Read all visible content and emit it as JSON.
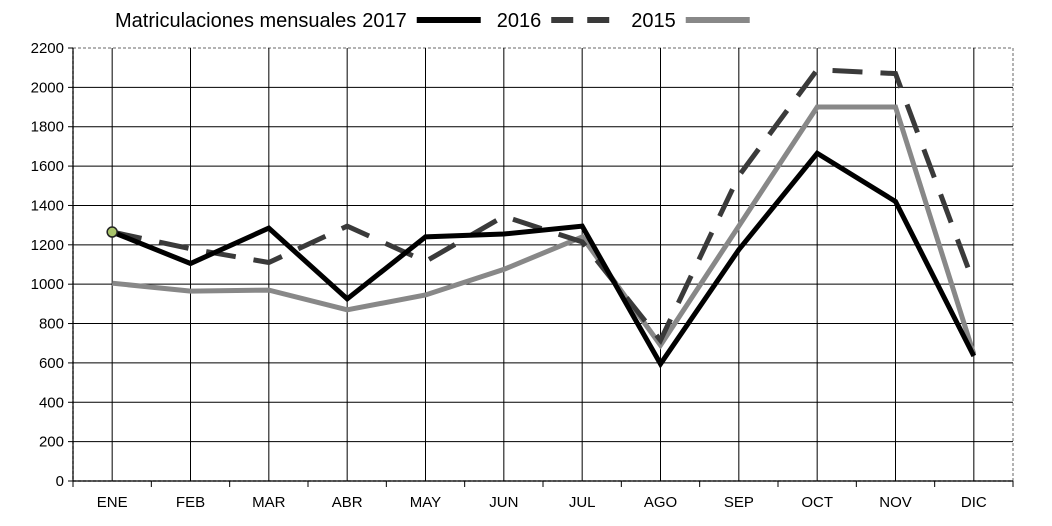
{
  "chart_data": {
    "type": "line",
    "title": "",
    "xlabel": "",
    "ylabel": "",
    "categories": [
      "ENE",
      "FEB",
      "MAR",
      "ABR",
      "MAY",
      "JUN",
      "JUL",
      "AGO",
      "SEP",
      "OCT",
      "NOV",
      "DIC"
    ],
    "ylim": [
      0,
      2200
    ],
    "yticks": [
      "0",
      "200",
      "400",
      "600",
      "800",
      "1000",
      "1200",
      "1400",
      "1600",
      "1800",
      "2000",
      "2200"
    ],
    "grid": true,
    "legend_position": "top",
    "legend_prefix": "Matriculaciones mensuales",
    "series": [
      {
        "name": "2017",
        "color": "#000000",
        "style": "solid",
        "values": [
          1265,
          1105,
          1285,
          925,
          1240,
          1255,
          1295,
          595,
          1175,
          1665,
          1420,
          635
        ]
      },
      {
        "name": "2016",
        "color": "#3a3a3a",
        "style": "dashed",
        "values": [
          1265,
          1180,
          1110,
          1295,
          1115,
          1345,
          1215,
          715,
          1550,
          2090,
          2070,
          1005
        ]
      },
      {
        "name": "2015",
        "color": "#888888",
        "style": "solid",
        "values": [
          1005,
          965,
          970,
          870,
          945,
          1075,
          1240,
          690,
          1295,
          1900,
          1900,
          645
        ]
      }
    ],
    "marker": {
      "category": "ENE",
      "value": 1265,
      "fill": "#a9c46b"
    }
  }
}
